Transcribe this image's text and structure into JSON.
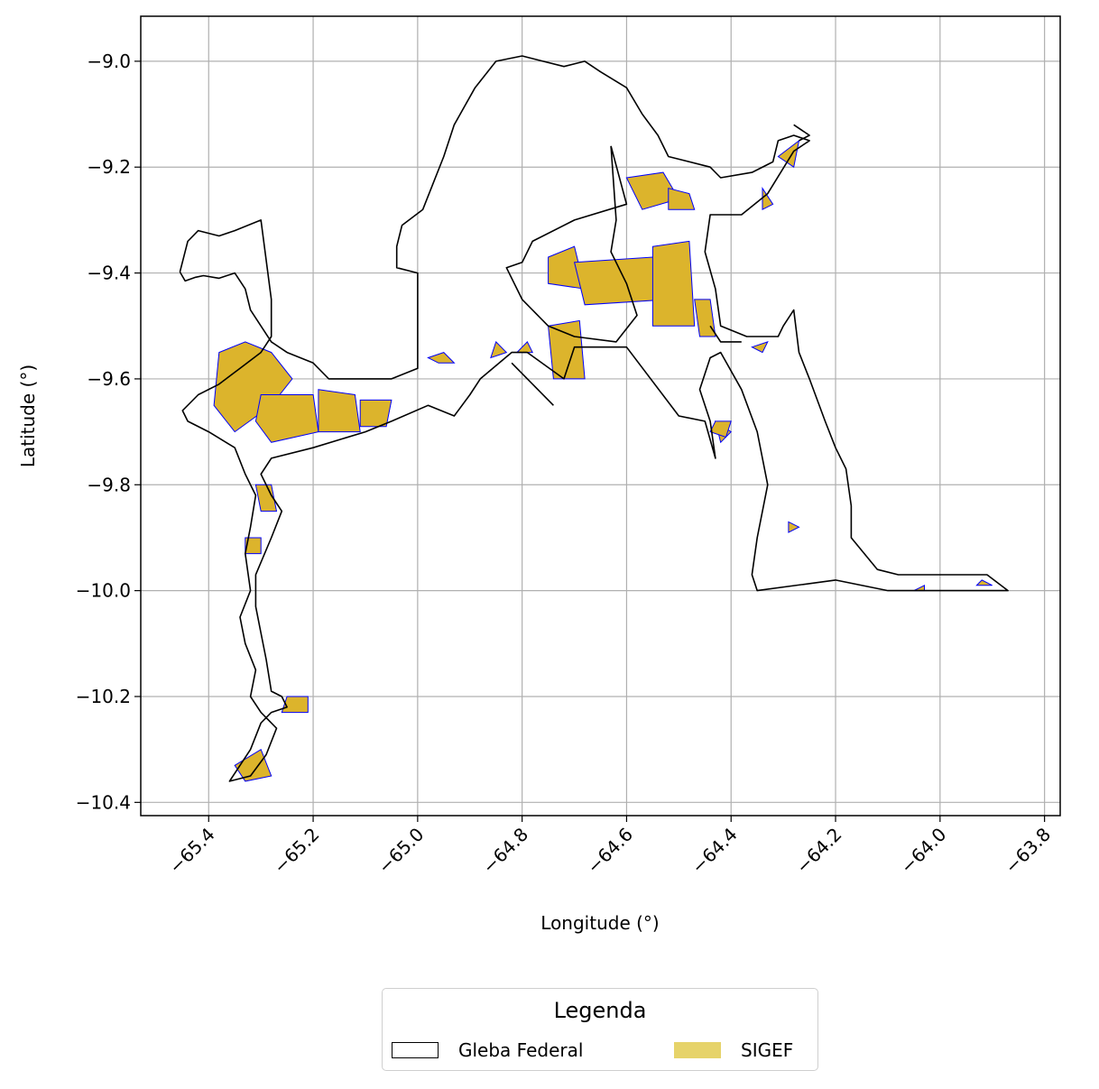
{
  "chart_data": {
    "type": "map",
    "xlabel": "Longitude (°)",
    "ylabel": "Latitude (°)",
    "xlim": [
      -65.53,
      -63.77
    ],
    "ylim": [
      -10.425,
      -8.915
    ],
    "xticks": [
      -65.4,
      -65.2,
      -65.0,
      -64.8,
      -64.6,
      -64.4,
      -64.2,
      -64.0,
      -63.8
    ],
    "xtick_labels": [
      "−65.4",
      "−65.2",
      "−65.0",
      "−64.8",
      "−64.6",
      "−64.4",
      "−64.2",
      "−64.0",
      "−63.8"
    ],
    "yticks": [
      -9.0,
      -9.2,
      -9.4,
      -9.6,
      -9.8,
      -10.0,
      -10.2,
      -10.4
    ],
    "ytick_labels": [
      "−9.0",
      "−9.2",
      "−9.4",
      "−9.6",
      "−9.8",
      "−10.0",
      "−10.2",
      "−10.4"
    ],
    "grid": true,
    "legend": {
      "title": "Legenda",
      "placement": "bottom-center",
      "entries": [
        {
          "label": "Gleba Federal",
          "style": "outline",
          "color": "#000000"
        },
        {
          "label": "SIGEF",
          "style": "fill",
          "color": "#e6d36a"
        }
      ]
    },
    "colors": {
      "gleba_outline": "#000000",
      "sigef_fill": "#dcb42c",
      "sigef_edge": "#0000ff",
      "grid": "#b0b0b0"
    },
    "gleba_outlines": [
      [
        [
          -65.455,
          -9.398
        ],
        [
          -65.445,
          -9.415
        ],
        [
          -65.425,
          -9.408
        ],
        [
          -65.41,
          -9.405
        ],
        [
          -65.38,
          -9.41
        ],
        [
          -65.35,
          -9.4
        ],
        [
          -65.33,
          -9.43
        ],
        [
          -65.32,
          -9.47
        ],
        [
          -65.3,
          -9.5
        ],
        [
          -65.28,
          -9.53
        ],
        [
          -65.25,
          -9.55
        ],
        [
          -65.2,
          -9.57
        ],
        [
          -65.17,
          -9.6
        ],
        [
          -65.1,
          -9.6
        ],
        [
          -65.05,
          -9.6
        ],
        [
          -65.0,
          -9.58
        ],
        [
          -65.0,
          -9.4
        ],
        [
          -65.04,
          -9.39
        ],
        [
          -65.04,
          -9.35
        ],
        [
          -65.03,
          -9.31
        ],
        [
          -64.99,
          -9.28
        ],
        [
          -64.97,
          -9.23
        ],
        [
          -64.95,
          -9.18
        ],
        [
          -64.93,
          -9.12
        ],
        [
          -64.89,
          -9.05
        ],
        [
          -64.85,
          -9.0
        ],
        [
          -64.8,
          -8.99
        ],
        [
          -64.76,
          -9.0
        ],
        [
          -64.72,
          -9.01
        ],
        [
          -64.68,
          -9.0
        ],
        [
          -64.65,
          -9.02
        ],
        [
          -64.6,
          -9.05
        ],
        [
          -64.57,
          -9.1
        ],
        [
          -64.54,
          -9.14
        ],
        [
          -64.52,
          -9.18
        ],
        [
          -64.44,
          -9.2
        ],
        [
          -64.42,
          -9.22
        ],
        [
          -64.36,
          -9.21
        ],
        [
          -64.32,
          -9.19
        ],
        [
          -64.31,
          -9.15
        ],
        [
          -64.28,
          -9.14
        ],
        [
          -64.25,
          -9.15
        ],
        [
          -64.28,
          -9.17
        ],
        [
          -64.33,
          -9.25
        ],
        [
          -64.38,
          -9.29
        ],
        [
          -64.44,
          -9.29
        ],
        [
          -64.45,
          -9.36
        ],
        [
          -64.43,
          -9.43
        ],
        [
          -64.42,
          -9.5
        ],
        [
          -64.37,
          -9.52
        ],
        [
          -64.33,
          -9.52
        ],
        [
          -64.31,
          -9.52
        ],
        [
          -64.3,
          -9.5
        ],
        [
          -64.28,
          -9.47
        ],
        [
          -64.27,
          -9.55
        ],
        [
          -64.25,
          -9.6
        ],
        [
          -64.22,
          -9.68
        ],
        [
          -64.2,
          -9.73
        ],
        [
          -64.18,
          -9.77
        ],
        [
          -64.17,
          -9.84
        ],
        [
          -64.17,
          -9.9
        ],
        [
          -64.12,
          -9.96
        ],
        [
          -64.08,
          -9.97
        ],
        [
          -63.98,
          -9.97
        ],
        [
          -63.91,
          -9.97
        ],
        [
          -63.87,
          -10.0
        ],
        [
          -63.98,
          -10.0
        ],
        [
          -64.1,
          -10.0
        ],
        [
          -64.2,
          -9.98
        ],
        [
          -64.35,
          -10.0
        ],
        [
          -64.36,
          -9.97
        ],
        [
          -64.35,
          -9.9
        ],
        [
          -64.33,
          -9.8
        ],
        [
          -64.35,
          -9.7
        ],
        [
          -64.38,
          -9.62
        ],
        [
          -64.42,
          -9.55
        ],
        [
          -64.44,
          -9.56
        ],
        [
          -64.46,
          -9.62
        ],
        [
          -64.44,
          -9.68
        ],
        [
          -64.43,
          -9.75
        ],
        [
          -64.45,
          -9.68
        ],
        [
          -64.5,
          -9.67
        ],
        [
          -64.6,
          -9.54
        ],
        [
          -64.7,
          -9.54
        ],
        [
          -64.72,
          -9.6
        ],
        [
          -64.79,
          -9.55
        ],
        [
          -64.82,
          -9.55
        ],
        [
          -64.88,
          -9.6
        ],
        [
          -64.9,
          -9.63
        ],
        [
          -64.93,
          -9.67
        ],
        [
          -64.98,
          -9.65
        ],
        [
          -65.05,
          -9.68
        ],
        [
          -65.1,
          -9.7
        ],
        [
          -65.2,
          -9.73
        ],
        [
          -65.28,
          -9.75
        ],
        [
          -65.3,
          -9.78
        ],
        [
          -65.28,
          -9.82
        ],
        [
          -65.26,
          -9.85
        ],
        [
          -65.28,
          -9.9
        ],
        [
          -65.31,
          -9.97
        ],
        [
          -65.31,
          -10.03
        ],
        [
          -65.3,
          -10.08
        ],
        [
          -65.29,
          -10.13
        ],
        [
          -65.28,
          -10.19
        ],
        [
          -65.26,
          -10.2
        ],
        [
          -65.25,
          -10.22
        ],
        [
          -65.28,
          -10.23
        ],
        [
          -65.3,
          -10.25
        ],
        [
          -65.32,
          -10.3
        ],
        [
          -65.36,
          -10.36
        ],
        [
          -65.32,
          -10.35
        ],
        [
          -65.29,
          -10.31
        ],
        [
          -65.27,
          -10.26
        ],
        [
          -65.3,
          -10.23
        ],
        [
          -65.32,
          -10.2
        ],
        [
          -65.31,
          -10.15
        ],
        [
          -65.33,
          -10.1
        ],
        [
          -65.34,
          -10.05
        ],
        [
          -65.32,
          -10.0
        ],
        [
          -65.33,
          -9.93
        ],
        [
          -65.32,
          -9.88
        ],
        [
          -65.31,
          -9.82
        ],
        [
          -65.33,
          -9.78
        ],
        [
          -65.35,
          -9.73
        ],
        [
          -65.4,
          -9.7
        ],
        [
          -65.44,
          -9.68
        ],
        [
          -65.45,
          -9.66
        ],
        [
          -65.42,
          -9.63
        ],
        [
          -65.38,
          -9.61
        ],
        [
          -65.34,
          -9.58
        ],
        [
          -65.3,
          -9.55
        ],
        [
          -65.28,
          -9.52
        ],
        [
          -65.28,
          -9.45
        ],
        [
          -65.3,
          -9.3
        ],
        [
          -65.35,
          -9.32
        ],
        [
          -65.38,
          -9.33
        ],
        [
          -65.42,
          -9.32
        ],
        [
          -65.44,
          -9.34
        ],
        [
          -65.455,
          -9.398
        ]
      ],
      [
        [
          -64.63,
          -9.16
        ],
        [
          -64.6,
          -9.27
        ],
        [
          -64.7,
          -9.3
        ],
        [
          -64.78,
          -9.34
        ],
        [
          -64.8,
          -9.38
        ],
        [
          -64.83,
          -9.39
        ],
        [
          -64.8,
          -9.45
        ],
        [
          -64.75,
          -9.5
        ],
        [
          -64.7,
          -9.52
        ],
        [
          -64.62,
          -9.53
        ],
        [
          -64.58,
          -9.48
        ],
        [
          -64.6,
          -9.42
        ],
        [
          -64.63,
          -9.36
        ],
        [
          -64.62,
          -9.3
        ],
        [
          -64.63,
          -9.16
        ]
      ],
      [
        [
          -64.82,
          -9.57
        ],
        [
          -64.74,
          -9.65
        ]
      ],
      [
        [
          -64.27,
          -9.15
        ],
        [
          -64.25,
          -9.14
        ],
        [
          -64.28,
          -9.12
        ]
      ],
      [
        [
          -64.44,
          -9.5
        ],
        [
          -64.42,
          -9.53
        ],
        [
          -64.38,
          -9.53
        ]
      ]
    ],
    "sigef_parcels": [
      [
        [
          -65.38,
          -9.55
        ],
        [
          -65.33,
          -9.53
        ],
        [
          -65.28,
          -9.55
        ],
        [
          -65.24,
          -9.6
        ],
        [
          -65.28,
          -9.65
        ],
        [
          -65.35,
          -9.7
        ],
        [
          -65.39,
          -9.65
        ]
      ],
      [
        [
          -65.3,
          -9.63
        ],
        [
          -65.2,
          -9.63
        ],
        [
          -65.19,
          -9.7
        ],
        [
          -65.28,
          -9.72
        ],
        [
          -65.31,
          -9.68
        ]
      ],
      [
        [
          -65.19,
          -9.62
        ],
        [
          -65.12,
          -9.63
        ],
        [
          -65.11,
          -9.7
        ],
        [
          -65.19,
          -9.7
        ]
      ],
      [
        [
          -65.11,
          -9.64
        ],
        [
          -65.05,
          -9.64
        ],
        [
          -65.06,
          -9.69
        ],
        [
          -65.11,
          -9.69
        ]
      ],
      [
        [
          -64.75,
          -9.5
        ],
        [
          -64.69,
          -9.49
        ],
        [
          -64.68,
          -9.6
        ],
        [
          -64.74,
          -9.6
        ]
      ],
      [
        [
          -64.75,
          -9.37
        ],
        [
          -64.7,
          -9.35
        ],
        [
          -64.68,
          -9.43
        ],
        [
          -64.75,
          -9.42
        ]
      ],
      [
        [
          -64.7,
          -9.38
        ],
        [
          -64.55,
          -9.37
        ],
        [
          -64.52,
          -9.45
        ],
        [
          -64.68,
          -9.46
        ]
      ],
      [
        [
          -64.6,
          -9.22
        ],
        [
          -64.53,
          -9.21
        ],
        [
          -64.5,
          -9.26
        ],
        [
          -64.57,
          -9.28
        ]
      ],
      [
        [
          -64.55,
          -9.35
        ],
        [
          -64.48,
          -9.34
        ],
        [
          -64.47,
          -9.5
        ],
        [
          -64.55,
          -9.5
        ]
      ],
      [
        [
          -64.47,
          -9.45
        ],
        [
          -64.44,
          -9.45
        ],
        [
          -64.43,
          -9.52
        ],
        [
          -64.46,
          -9.52
        ]
      ],
      [
        [
          -64.52,
          -9.24
        ],
        [
          -64.48,
          -9.25
        ],
        [
          -64.47,
          -9.28
        ],
        [
          -64.52,
          -9.28
        ]
      ],
      [
        [
          -64.31,
          -9.18
        ],
        [
          -64.27,
          -9.15
        ],
        [
          -64.28,
          -9.2
        ]
      ],
      [
        [
          -64.34,
          -9.24
        ],
        [
          -64.32,
          -9.27
        ],
        [
          -64.34,
          -9.28
        ]
      ],
      [
        [
          -64.29,
          -9.87
        ],
        [
          -64.27,
          -9.88
        ],
        [
          -64.29,
          -9.89
        ]
      ],
      [
        [
          -64.05,
          -10.0
        ],
        [
          -64.03,
          -10.0
        ],
        [
          -64.03,
          -9.99
        ]
      ],
      [
        [
          -63.93,
          -9.99
        ],
        [
          -63.9,
          -9.99
        ],
        [
          -63.92,
          -9.98
        ]
      ],
      [
        [
          -64.43,
          -9.68
        ],
        [
          -64.4,
          -9.7
        ],
        [
          -64.42,
          -9.72
        ]
      ],
      [
        [
          -64.44,
          -9.7
        ],
        [
          -64.43,
          -9.68
        ],
        [
          -64.4,
          -9.68
        ],
        [
          -64.41,
          -9.71
        ]
      ],
      [
        [
          -64.81,
          -9.55
        ],
        [
          -64.79,
          -9.53
        ],
        [
          -64.78,
          -9.55
        ]
      ],
      [
        [
          -64.98,
          -9.56
        ],
        [
          -64.95,
          -9.55
        ],
        [
          -64.93,
          -9.57
        ],
        [
          -64.96,
          -9.57
        ]
      ],
      [
        [
          -64.36,
          -9.54
        ],
        [
          -64.33,
          -9.53
        ],
        [
          -64.34,
          -9.55
        ]
      ],
      [
        [
          -65.25,
          -10.2
        ],
        [
          -65.21,
          -10.2
        ],
        [
          -65.21,
          -10.23
        ],
        [
          -65.26,
          -10.23
        ]
      ],
      [
        [
          -65.35,
          -10.33
        ],
        [
          -65.3,
          -10.3
        ],
        [
          -65.28,
          -10.35
        ],
        [
          -65.33,
          -10.36
        ]
      ],
      [
        [
          -65.31,
          -9.8
        ],
        [
          -65.28,
          -9.8
        ],
        [
          -65.27,
          -9.85
        ],
        [
          -65.3,
          -9.85
        ]
      ],
      [
        [
          -65.33,
          -9.9
        ],
        [
          -65.3,
          -9.9
        ],
        [
          -65.3,
          -9.93
        ],
        [
          -65.33,
          -9.93
        ]
      ],
      [
        [
          -64.85,
          -9.53
        ],
        [
          -64.83,
          -9.55
        ],
        [
          -64.86,
          -9.56
        ]
      ]
    ]
  }
}
